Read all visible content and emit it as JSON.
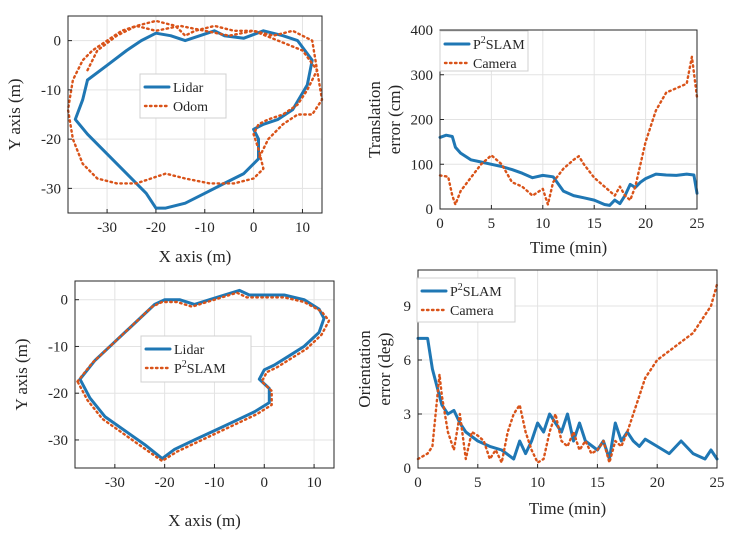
{
  "colors": {
    "blue": "#1f77b4",
    "orange": "#d95319",
    "grid": "#e3e3e3",
    "axis": "#262626"
  },
  "chart_data": [
    {
      "id": "traj-odom",
      "type": "line",
      "xlabel": "X axis (m)",
      "ylabel": "Y axis (m)",
      "xlim": [
        -38,
        14
      ],
      "ylim": [
        -35,
        5
      ],
      "xticks": [
        -30,
        -20,
        -10,
        0,
        10
      ],
      "yticks": [
        0,
        -10,
        -20,
        -30
      ],
      "grid": true,
      "legend": {
        "position": "center-left",
        "entries": [
          "Lidar",
          "Odom"
        ]
      },
      "series": [
        {
          "name": "Lidar",
          "style": "solid",
          "color": "#1f77b4",
          "x": [
            -34,
            -30,
            -26,
            -23,
            -20,
            -17,
            -14,
            -11,
            -8,
            -6,
            -2,
            2,
            6,
            9,
            12,
            11,
            8,
            5,
            2,
            0,
            1,
            1,
            -2,
            -6,
            -10,
            -14,
            -18,
            -20,
            -22,
            -26,
            -30,
            -34,
            -36.5,
            -35,
            -34
          ],
          "y": [
            -8,
            -5,
            -2,
            0,
            1.5,
            1,
            0,
            1,
            2,
            1,
            0.5,
            2,
            1,
            0,
            -4,
            -9,
            -14,
            -16,
            -17,
            -18,
            -20,
            -24,
            -27,
            -29,
            -31,
            -33,
            -34,
            -34,
            -31,
            -27,
            -23,
            -19,
            -16,
            -12,
            -8
          ]
        },
        {
          "name": "Odom",
          "style": "dotted",
          "color": "#d95319",
          "x": [
            -34,
            -32,
            -28,
            -24,
            -20,
            -16,
            -14,
            -12,
            -8,
            -4,
            0,
            4,
            8,
            12,
            13,
            11,
            9,
            6,
            3,
            1,
            0,
            1,
            2,
            0,
            -4,
            -9,
            -14,
            -18,
            -21,
            -24,
            -28,
            -32,
            -35,
            -37,
            -38,
            -37,
            -35,
            -33,
            -30,
            -27,
            -24,
            -20,
            -15,
            -10,
            -5,
            0,
            5,
            10,
            13,
            14,
            12,
            9,
            6,
            3,
            1
          ],
          "y": [
            -6,
            -2,
            1,
            3,
            4,
            3,
            1,
            2,
            3,
            2,
            2,
            1,
            2,
            0,
            -6,
            -10,
            -13,
            -15,
            -16,
            -17,
            -19,
            -22,
            -26,
            -28,
            -29,
            -29,
            -28,
            -27,
            -28,
            -29,
            -29,
            -28,
            -25,
            -20,
            -14,
            -8,
            -4,
            -2,
            0,
            2,
            3,
            2,
            3,
            2,
            1,
            2,
            0,
            -2,
            -6,
            -12,
            -15,
            -15,
            -17,
            -20,
            -24
          ]
        }
      ]
    },
    {
      "id": "trans-err",
      "type": "line",
      "xlabel": "Time (min)",
      "ylabel": "Translation error (cm)",
      "ylabel_lines": [
        "Translation",
        "error (cm)"
      ],
      "xlim": [
        0,
        25
      ],
      "ylim": [
        0,
        400
      ],
      "xticks": [
        0,
        5,
        10,
        15,
        20,
        25
      ],
      "yticks": [
        0,
        100,
        200,
        300,
        400
      ],
      "grid": true,
      "legend": {
        "position": "top-left",
        "entries": [
          "P2SLAM",
          "Camera"
        ]
      },
      "series": [
        {
          "name": "P2SLAM",
          "style": "solid",
          "color": "#1f77b4",
          "x": [
            0,
            0.6,
            1.2,
            1.5,
            2,
            3,
            4,
            5,
            6,
            7,
            8,
            9,
            10,
            11,
            12,
            13,
            14,
            15,
            16,
            16.5,
            17,
            17.5,
            18,
            18.5,
            19,
            19.5,
            20,
            21,
            22,
            23,
            24,
            24.7,
            25
          ],
          "y": [
            160,
            165,
            162,
            138,
            125,
            110,
            105,
            100,
            95,
            88,
            80,
            70,
            75,
            72,
            40,
            30,
            25,
            20,
            10,
            8,
            20,
            12,
            30,
            55,
            48,
            60,
            68,
            78,
            76,
            75,
            78,
            76,
            35
          ]
        },
        {
          "name": "Camera",
          "style": "dotted",
          "color": "#d95319",
          "x": [
            0,
            0.8,
            1.2,
            1.5,
            2,
            3,
            4,
            5,
            6,
            7,
            8,
            9,
            10,
            10.5,
            11,
            12,
            13,
            13.5,
            14,
            15,
            16,
            17,
            17.5,
            18,
            18.5,
            19,
            20,
            21,
            22,
            23,
            24,
            24.5,
            25
          ],
          "y": [
            75,
            72,
            30,
            10,
            40,
            70,
            100,
            120,
            100,
            60,
            50,
            30,
            45,
            10,
            60,
            90,
            110,
            118,
            100,
            70,
            50,
            30,
            50,
            30,
            20,
            50,
            150,
            220,
            260,
            270,
            280,
            340,
            250
          ]
        }
      ]
    },
    {
      "id": "traj-p2slam",
      "type": "line",
      "xlabel": "X axis (m)",
      "ylabel": "Y axis (m)",
      "xlim": [
        -38,
        14
      ],
      "ylim": [
        -36,
        4
      ],
      "xticks": [
        -30,
        -20,
        -10,
        0,
        10
      ],
      "yticks": [
        0,
        -10,
        -20,
        -30
      ],
      "grid": true,
      "legend": {
        "position": "center-right",
        "entries": [
          "Lidar",
          "P2SLAM"
        ]
      },
      "series": [
        {
          "name": "Lidar",
          "style": "solid",
          "color": "#1f77b4",
          "x": [
            -37,
            -34,
            -30,
            -26,
            -22,
            -20,
            -17,
            -14,
            -11,
            -8,
            -5,
            -3,
            0,
            4,
            8,
            11,
            12,
            11,
            8,
            5,
            2,
            0,
            -1,
            1,
            1,
            -2,
            -6,
            -10,
            -14,
            -18,
            -20.5,
            -24,
            -28,
            -32,
            -35,
            -37
          ],
          "y": [
            -17,
            -13,
            -9,
            -5,
            -1,
            0,
            0,
            -1,
            0,
            1,
            2,
            1,
            1,
            1,
            0,
            -2,
            -4,
            -7,
            -10,
            -12,
            -14,
            -15,
            -17,
            -19,
            -22,
            -24,
            -26,
            -28,
            -30,
            -32,
            -34,
            -31,
            -28,
            -25,
            -21,
            -17
          ]
        },
        {
          "name": "P2SLAM",
          "style": "dotted",
          "color": "#d95319",
          "x": [
            -37.5,
            -34.5,
            -30.5,
            -26.5,
            -22.5,
            -20.5,
            -17.5,
            -14.5,
            -11.5,
            -8.5,
            -5.5,
            -3.5,
            0,
            4,
            8,
            11.5,
            13,
            11.5,
            8.5,
            5.5,
            2.5,
            0.5,
            -0.5,
            1.5,
            1.5,
            -1.5,
            -5.5,
            -9.5,
            -13.5,
            -17.5,
            -20.5,
            -24.5,
            -28.5,
            -32.5,
            -35.5,
            -37.5
          ],
          "y": [
            -17.5,
            -13.5,
            -9.5,
            -5.5,
            -1.5,
            -0.5,
            -0.5,
            -1.5,
            -0.5,
            0.5,
            1.5,
            0.5,
            0.5,
            0.5,
            -0.5,
            -2.5,
            -4.5,
            -7.5,
            -10.5,
            -12.5,
            -14.5,
            -15.5,
            -17.5,
            -19.5,
            -22.5,
            -24.5,
            -26.5,
            -28.5,
            -30.5,
            -32.5,
            -34.5,
            -31.5,
            -28.5,
            -25.5,
            -21.5,
            -17.5
          ]
        }
      ]
    },
    {
      "id": "orient-err",
      "type": "line",
      "xlabel": "Time (min)",
      "ylabel": "Orientation error (deg)",
      "ylabel_lines": [
        "Orientation",
        "error (deg)"
      ],
      "xlim": [
        0,
        25
      ],
      "ylim": [
        0,
        11
      ],
      "xticks": [
        0,
        5,
        10,
        15,
        20,
        25
      ],
      "yticks": [
        0,
        3,
        6,
        9
      ],
      "grid": true,
      "legend": {
        "position": "top-left",
        "entries": [
          "P2SLAM",
          "Camera"
        ]
      },
      "series": [
        {
          "name": "P2SLAM",
          "style": "solid",
          "color": "#1f77b4",
          "x": [
            0,
            0.8,
            1.2,
            1.6,
            2,
            2.5,
            3,
            3.5,
            4,
            5,
            6,
            7,
            8,
            8.5,
            9,
            9.5,
            10,
            10.5,
            11,
            11.5,
            12,
            12.5,
            13,
            13.5,
            14,
            15,
            15.5,
            16,
            16.5,
            17,
            17.5,
            18,
            18.5,
            19,
            20,
            21,
            22,
            23,
            24,
            24.5,
            25
          ],
          "y": [
            7.2,
            7.2,
            5.5,
            4.5,
            3.5,
            3,
            3.2,
            2.5,
            2,
            1.5,
            1.2,
            1,
            0.5,
            1.5,
            0.8,
            1.5,
            2.5,
            2,
            3,
            2.5,
            2,
            3,
            1.5,
            2.5,
            1.5,
            1,
            1.5,
            0.5,
            2.5,
            1.5,
            2,
            1.5,
            1.2,
            1.6,
            1.2,
            0.8,
            1.5,
            0.8,
            0.5,
            1,
            0.5
          ]
        },
        {
          "name": "Camera",
          "style": "dotted",
          "color": "#d95319",
          "x": [
            0,
            0.8,
            1.2,
            1.8,
            2,
            2.5,
            3,
            3.5,
            4,
            4.5,
            5,
            5.5,
            6,
            6.5,
            7,
            7.5,
            8,
            8.5,
            9,
            9.5,
            10,
            10.5,
            11,
            11.5,
            12,
            12.5,
            13,
            13.5,
            14,
            14.5,
            15,
            15.5,
            16,
            16.5,
            17,
            17.5,
            18,
            18.5,
            19,
            20,
            21,
            22,
            23,
            24,
            24.5,
            25
          ],
          "y": [
            0.5,
            0.8,
            1.2,
            5.2,
            4,
            2,
            1,
            3,
            0.5,
            2,
            1.8,
            1.5,
            0.5,
            1,
            0.3,
            2,
            3,
            3.5,
            2,
            1,
            0.3,
            0.5,
            2,
            3,
            1.5,
            1.2,
            2,
            1,
            1.5,
            0.8,
            1,
            1.5,
            0.3,
            1.5,
            1.2,
            2,
            3,
            4,
            5,
            6,
            6.5,
            7,
            7.5,
            8.5,
            9,
            10.2
          ]
        }
      ]
    }
  ]
}
